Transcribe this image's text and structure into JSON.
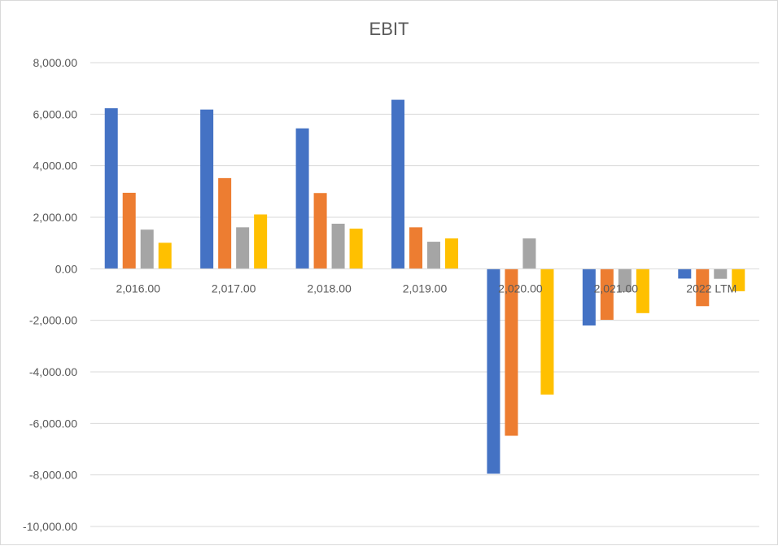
{
  "chart_data": {
    "type": "bar",
    "title": "EBIT",
    "xlabel": "",
    "ylabel": "",
    "categories": [
      "2,016.00",
      "2,017.00",
      "2,018.00",
      "2,019.00",
      "2,020.00",
      "2,021.00",
      "2022 LTM"
    ],
    "series": [
      {
        "color": "#4472C4",
        "values": [
          6230,
          6180,
          5450,
          6560,
          -7950,
          -2200,
          -380
        ]
      },
      {
        "color": "#ED7D31",
        "values": [
          2950,
          3520,
          2940,
          1610,
          -6480,
          -1980,
          -1450
        ]
      },
      {
        "color": "#A5A5A5",
        "values": [
          1520,
          1610,
          1750,
          1050,
          1180,
          -900,
          -390
        ]
      },
      {
        "color": "#FFC000",
        "values": [
          1010,
          2110,
          1560,
          1180,
          -4880,
          -1720,
          -870
        ]
      }
    ],
    "ylim": [
      -10000,
      8000
    ],
    "yticks": [
      8000,
      6000,
      4000,
      2000,
      0,
      -2000,
      -4000,
      -6000,
      -8000,
      -10000
    ],
    "ytick_labels": [
      "8,000.00",
      "6,000.00",
      "4,000.00",
      "2,000.00",
      "0.00",
      "-2,000.00",
      "-4,000.00",
      "-6,000.00",
      "-8,000.00",
      "-10,000.00"
    ],
    "grid": true,
    "legend": "none"
  }
}
